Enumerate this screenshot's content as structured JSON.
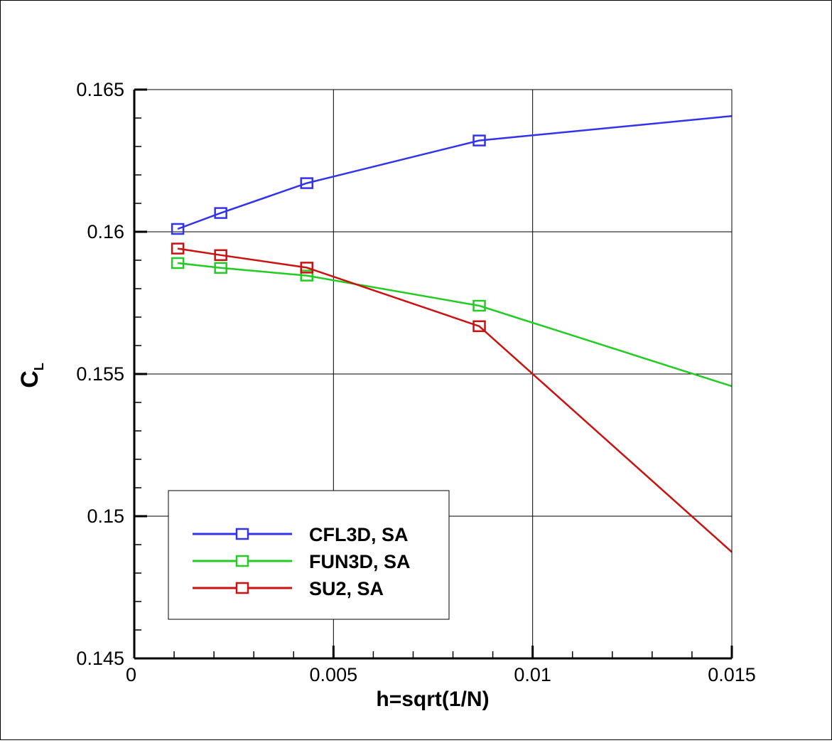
{
  "chart_data": {
    "type": "line",
    "xlabel": "h=sqrt(1/N)",
    "ylabel_main": "C",
    "ylabel_sub": "L",
    "xlim": [
      0,
      0.015
    ],
    "ylim": [
      0.145,
      0.165
    ],
    "xticks": [
      0,
      0.005,
      0.01,
      0.015
    ],
    "xtick_labels": [
      "0",
      "0.005",
      "0.01",
      "0.015"
    ],
    "yticks": [
      0.145,
      0.15,
      0.155,
      0.16,
      0.165
    ],
    "ytick_labels": [
      "0.145",
      "0.15",
      "0.155",
      "0.16",
      "0.165"
    ],
    "grid": true,
    "legend_position": "bottom-left",
    "series": [
      {
        "name": "CFL3D, SA",
        "color": "#3333ee",
        "marker": "square",
        "points": [
          [
            0.00109,
            0.1601
          ],
          [
            0.00217,
            0.16066
          ],
          [
            0.00433,
            0.16171
          ],
          [
            0.00866,
            0.16321
          ]
        ],
        "extrapolated": [
          0.015,
          0.16407
        ]
      },
      {
        "name": "FUN3D, SA",
        "color": "#22cc22",
        "marker": "square",
        "points": [
          [
            0.00109,
            0.1589
          ],
          [
            0.00217,
            0.15873
          ],
          [
            0.00433,
            0.15846
          ],
          [
            0.00866,
            0.1574
          ]
        ],
        "extrapolated": [
          0.015,
          0.15457
        ]
      },
      {
        "name": "SU2, SA",
        "color": "#cc1111",
        "marker": "square",
        "points": [
          [
            0.00109,
            0.15941
          ],
          [
            0.00217,
            0.15918
          ],
          [
            0.00433,
            0.15874
          ],
          [
            0.00866,
            0.15668
          ]
        ],
        "extrapolated": [
          0.015,
          0.14874
        ]
      }
    ]
  }
}
